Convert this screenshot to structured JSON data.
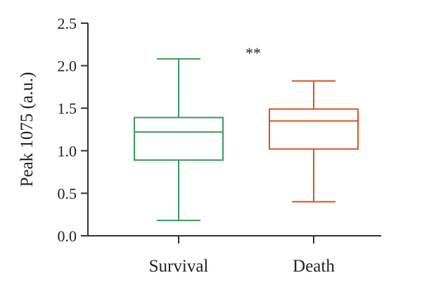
{
  "chart_data": {
    "type": "box",
    "title": "",
    "xlabel": "",
    "ylabel": "Peak 1075 (a.u.)",
    "ylim": [
      0.0,
      2.5
    ],
    "yticks": [
      0.0,
      0.5,
      1.0,
      1.5,
      2.0,
      2.5
    ],
    "ytick_labels": [
      "0.0",
      "0.5",
      "1.0",
      "1.5",
      "2.0",
      "2.5"
    ],
    "categories": [
      "Survival",
      "Death"
    ],
    "boxes": [
      {
        "category": "Survival",
        "min": 0.18,
        "q1": 0.89,
        "median": 1.22,
        "q3": 1.39,
        "max": 2.08,
        "color": "#3a9a5b"
      },
      {
        "category": "Death",
        "min": 0.4,
        "q1": 1.02,
        "median": 1.35,
        "q3": 1.49,
        "max": 1.82,
        "color": "#d9541f"
      }
    ],
    "annotation": {
      "text": "**",
      "category": "Death",
      "y": 2.22
    },
    "grid": false
  }
}
